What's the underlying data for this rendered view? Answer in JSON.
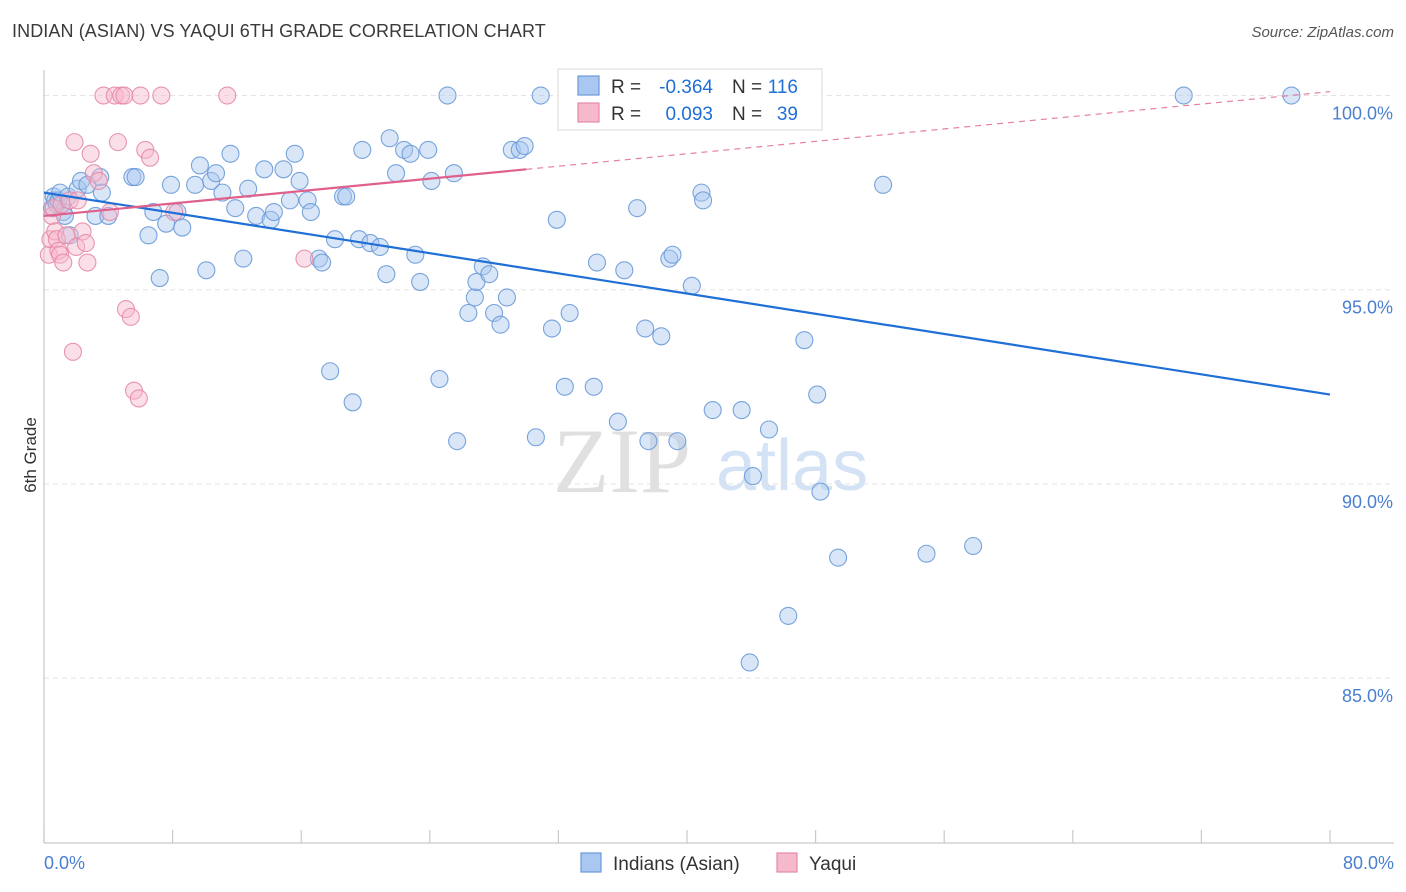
{
  "title": "INDIAN (ASIAN) VS YAQUI 6TH GRADE CORRELATION CHART",
  "source": "Source: ZipAtlas.com",
  "watermark": {
    "zip": "ZIP",
    "atlas": "atlas"
  },
  "colors": {
    "blue_fill": "#a9c7f0",
    "blue_stroke": "#6a9ad8",
    "blue_line": "#1f6fd6",
    "pink_fill": "#f6b8cb",
    "pink_stroke": "#e68aa7",
    "pink_line": "#e0608c",
    "tick_label": "#4a7fd0",
    "grid": "#e3e3e3"
  },
  "stats_box": {
    "rows": [
      {
        "r_label": "R =",
        "r_value": "-0.364",
        "n_label": "N =",
        "n_value": "116"
      },
      {
        "r_label": "R =",
        "r_value": "0.093",
        "n_label": "N =",
        "n_value": "39"
      }
    ]
  },
  "chart_data": {
    "type": "scatter",
    "xlabel": "",
    "ylabel": "6th Grade",
    "xlim": [
      0,
      80
    ],
    "ylim": [
      80.7,
      100.4
    ],
    "x_tick_labels": [
      "0.0%",
      "80.0%"
    ],
    "y_ticks": [
      100,
      95,
      90,
      85
    ],
    "y_tick_labels": [
      "100.0%",
      "95.0%",
      "90.0%",
      "85.0%"
    ],
    "grid": true,
    "legend_position": "bottom-center",
    "series": [
      {
        "name": "Indians (Asian)",
        "color": "blue",
        "r": -0.364,
        "n": 116,
        "trend": {
          "x": [
            0,
            80
          ],
          "y": [
            97.5,
            92.3
          ],
          "dashed_x": null
        },
        "points": [
          [
            0.5,
            97.1
          ],
          [
            0.6,
            97.4
          ],
          [
            0.7,
            97.3
          ],
          [
            0.8,
            97.2
          ],
          [
            0.9,
            97.3
          ],
          [
            1.0,
            97.5
          ],
          [
            1.2,
            97.0
          ],
          [
            1.3,
            96.9
          ],
          [
            1.5,
            97.4
          ],
          [
            1.6,
            96.4
          ],
          [
            2.1,
            97.6
          ],
          [
            2.3,
            97.8
          ],
          [
            2.7,
            97.7
          ],
          [
            3.2,
            96.9
          ],
          [
            3.5,
            97.9
          ],
          [
            3.6,
            97.5
          ],
          [
            4.0,
            96.9
          ],
          [
            5.5,
            97.9
          ],
          [
            5.7,
            97.9
          ],
          [
            6.5,
            96.4
          ],
          [
            6.8,
            97.0
          ],
          [
            7.2,
            95.3
          ],
          [
            7.6,
            96.7
          ],
          [
            7.9,
            97.7
          ],
          [
            8.3,
            97.0
          ],
          [
            8.6,
            96.6
          ],
          [
            9.4,
            97.7
          ],
          [
            9.7,
            98.2
          ],
          [
            10.1,
            95.5
          ],
          [
            10.4,
            97.8
          ],
          [
            10.7,
            98.0
          ],
          [
            11.1,
            97.5
          ],
          [
            11.6,
            98.5
          ],
          [
            11.9,
            97.1
          ],
          [
            12.4,
            95.8
          ],
          [
            12.7,
            97.6
          ],
          [
            13.2,
            96.9
          ],
          [
            13.7,
            98.1
          ],
          [
            14.1,
            96.8
          ],
          [
            14.3,
            97.0
          ],
          [
            14.9,
            98.1
          ],
          [
            15.3,
            97.3
          ],
          [
            15.6,
            98.5
          ],
          [
            15.9,
            97.8
          ],
          [
            16.4,
            97.3
          ],
          [
            16.6,
            97.0
          ],
          [
            17.1,
            95.8
          ],
          [
            17.3,
            95.7
          ],
          [
            17.8,
            92.9
          ],
          [
            18.1,
            96.3
          ],
          [
            18.6,
            97.4
          ],
          [
            18.8,
            97.4
          ],
          [
            19.2,
            92.1
          ],
          [
            19.6,
            96.3
          ],
          [
            19.8,
            98.6
          ],
          [
            20.3,
            96.2
          ],
          [
            20.9,
            96.1
          ],
          [
            21.3,
            95.4
          ],
          [
            21.5,
            98.9
          ],
          [
            21.9,
            98.0
          ],
          [
            22.4,
            98.6
          ],
          [
            22.8,
            98.5
          ],
          [
            23.1,
            95.9
          ],
          [
            23.4,
            95.2
          ],
          [
            23.9,
            98.6
          ],
          [
            24.1,
            97.8
          ],
          [
            24.6,
            92.7
          ],
          [
            25.1,
            100.0
          ],
          [
            25.5,
            98.0
          ],
          [
            25.7,
            91.1
          ],
          [
            26.4,
            94.4
          ],
          [
            26.8,
            94.8
          ],
          [
            26.9,
            95.2
          ],
          [
            27.3,
            95.6
          ],
          [
            27.7,
            95.4
          ],
          [
            28.0,
            94.4
          ],
          [
            28.4,
            94.1
          ],
          [
            28.8,
            94.8
          ],
          [
            29.1,
            98.6
          ],
          [
            29.6,
            98.6
          ],
          [
            29.9,
            98.7
          ],
          [
            30.6,
            91.2
          ],
          [
            30.9,
            100.0
          ],
          [
            31.6,
            94.0
          ],
          [
            31.9,
            96.8
          ],
          [
            32.4,
            92.5
          ],
          [
            32.7,
            94.4
          ],
          [
            34.2,
            92.5
          ],
          [
            34.4,
            95.7
          ],
          [
            35.7,
            91.6
          ],
          [
            36.1,
            95.5
          ],
          [
            36.9,
            97.1
          ],
          [
            37.4,
            94.0
          ],
          [
            37.6,
            91.1
          ],
          [
            38.4,
            93.8
          ],
          [
            38.9,
            95.8
          ],
          [
            39.1,
            95.9
          ],
          [
            39.4,
            91.1
          ],
          [
            40.3,
            95.1
          ],
          [
            40.9,
            97.5
          ],
          [
            41.0,
            97.3
          ],
          [
            41.6,
            91.9
          ],
          [
            43.4,
            91.9
          ],
          [
            43.9,
            85.4
          ],
          [
            44.1,
            90.2
          ],
          [
            45.1,
            91.4
          ],
          [
            46.3,
            86.6
          ],
          [
            47.3,
            93.7
          ],
          [
            48.1,
            92.3
          ],
          [
            48.3,
            89.8
          ],
          [
            49.4,
            88.1
          ],
          [
            52.2,
            97.7
          ],
          [
            54.9,
            88.2
          ],
          [
            57.8,
            88.4
          ],
          [
            70.9,
            100.0
          ],
          [
            77.6,
            100.0
          ]
        ]
      },
      {
        "name": "Yaqui",
        "color": "pink",
        "r": 0.093,
        "n": 39,
        "trend": {
          "x": [
            0,
            30
          ],
          "y": [
            96.9,
            98.1
          ],
          "dashed_x": [
            30,
            80
          ]
        },
        "points": [
          [
            0.3,
            95.9
          ],
          [
            0.4,
            96.3
          ],
          [
            0.5,
            96.9
          ],
          [
            0.6,
            97.1
          ],
          [
            0.7,
            96.5
          ],
          [
            0.8,
            96.3
          ],
          [
            0.9,
            96.0
          ],
          [
            1.0,
            95.9
          ],
          [
            1.1,
            97.2
          ],
          [
            1.2,
            95.7
          ],
          [
            1.4,
            96.4
          ],
          [
            1.6,
            97.3
          ],
          [
            1.8,
            93.4
          ],
          [
            1.9,
            98.8
          ],
          [
            2.0,
            96.1
          ],
          [
            2.1,
            97.3
          ],
          [
            2.4,
            96.5
          ],
          [
            2.6,
            96.2
          ],
          [
            2.7,
            95.7
          ],
          [
            2.9,
            98.5
          ],
          [
            3.1,
            98.0
          ],
          [
            3.4,
            97.8
          ],
          [
            3.7,
            100.0
          ],
          [
            4.1,
            97.0
          ],
          [
            4.4,
            100.0
          ],
          [
            4.6,
            98.8
          ],
          [
            4.8,
            100.0
          ],
          [
            5.0,
            100.0
          ],
          [
            5.1,
            94.5
          ],
          [
            5.4,
            94.3
          ],
          [
            5.6,
            92.4
          ],
          [
            5.9,
            92.2
          ],
          [
            6.0,
            100.0
          ],
          [
            6.3,
            98.6
          ],
          [
            6.6,
            98.4
          ],
          [
            7.3,
            100.0
          ],
          [
            8.1,
            97.0
          ],
          [
            11.4,
            100.0
          ],
          [
            16.2,
            95.8
          ]
        ]
      }
    ]
  }
}
